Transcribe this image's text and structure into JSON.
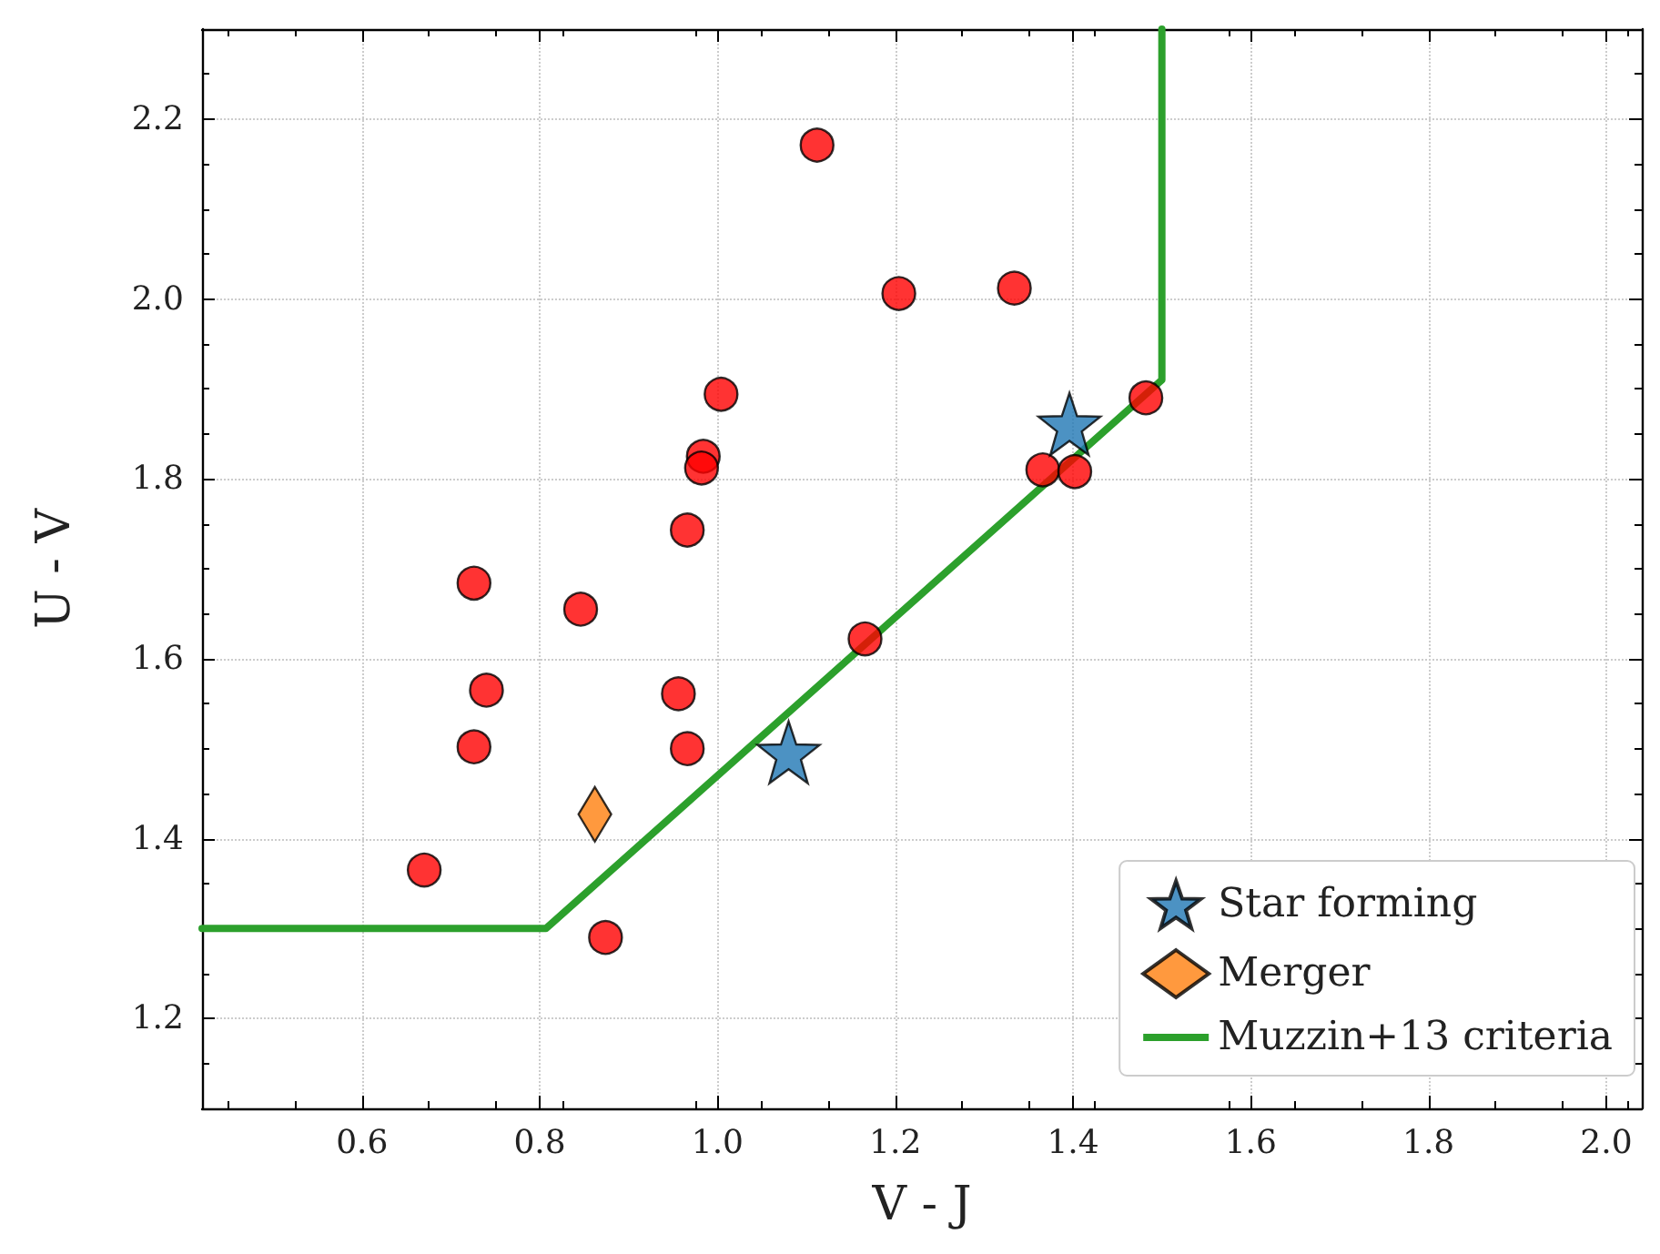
{
  "chart_data": {
    "type": "scatter",
    "xlabel": "V - J",
    "ylabel": "U - V",
    "xlim": [
      0.42,
      2.04
    ],
    "ylim": [
      1.1,
      2.3
    ],
    "xticks": [
      0.6,
      0.8,
      {
        "value": 1,
        "label": "1.0"
      },
      1.2,
      1.4,
      1.6,
      1.8,
      {
        "value": 2,
        "label": "2.0"
      }
    ],
    "yticks": [
      1.2,
      1.4,
      1.6,
      1.8,
      {
        "value": 2,
        "label": "2.0"
      },
      2.2
    ],
    "grid": true,
    "legend": "bottom right",
    "series": [
      {
        "marker": "circle",
        "color": "#ff0000",
        "x": [
          1.112,
          1.204,
          1.334,
          1.004,
          1.482,
          0.984,
          0.982,
          1.366,
          1.402,
          0.966,
          0.726,
          0.846,
          0.74,
          0.956,
          1.166,
          0.726,
          0.966,
          0.67,
          0.874
        ],
        "values": [
          2.171,
          2.006,
          2.012,
          1.894,
          1.89,
          1.825,
          1.812,
          1.81,
          1.808,
          1.743,
          1.684,
          1.655,
          1.565,
          1.561,
          1.622,
          1.502,
          1.5,
          1.365,
          1.29
        ]
      },
      {
        "name": "Star forming",
        "marker": "star",
        "color": "#1f77b4",
        "x": [
          1.396,
          1.08
        ],
        "values": [
          1.861,
          1.496
        ]
      },
      {
        "name": "Merger",
        "marker": "diamond",
        "color": "#ff7f0e",
        "x": [
          0.862
        ],
        "values": [
          1.427
        ]
      },
      {
        "type": "line",
        "name": "Muzzin+13 criteria",
        "marker": "none",
        "line_style": "solid",
        "color": "#2ca02c",
        "x": [
          0.42,
          0.807,
          1.5,
          1.5
        ],
        "values": [
          1.3,
          1.3,
          1.91,
          2.3
        ]
      }
    ]
  }
}
